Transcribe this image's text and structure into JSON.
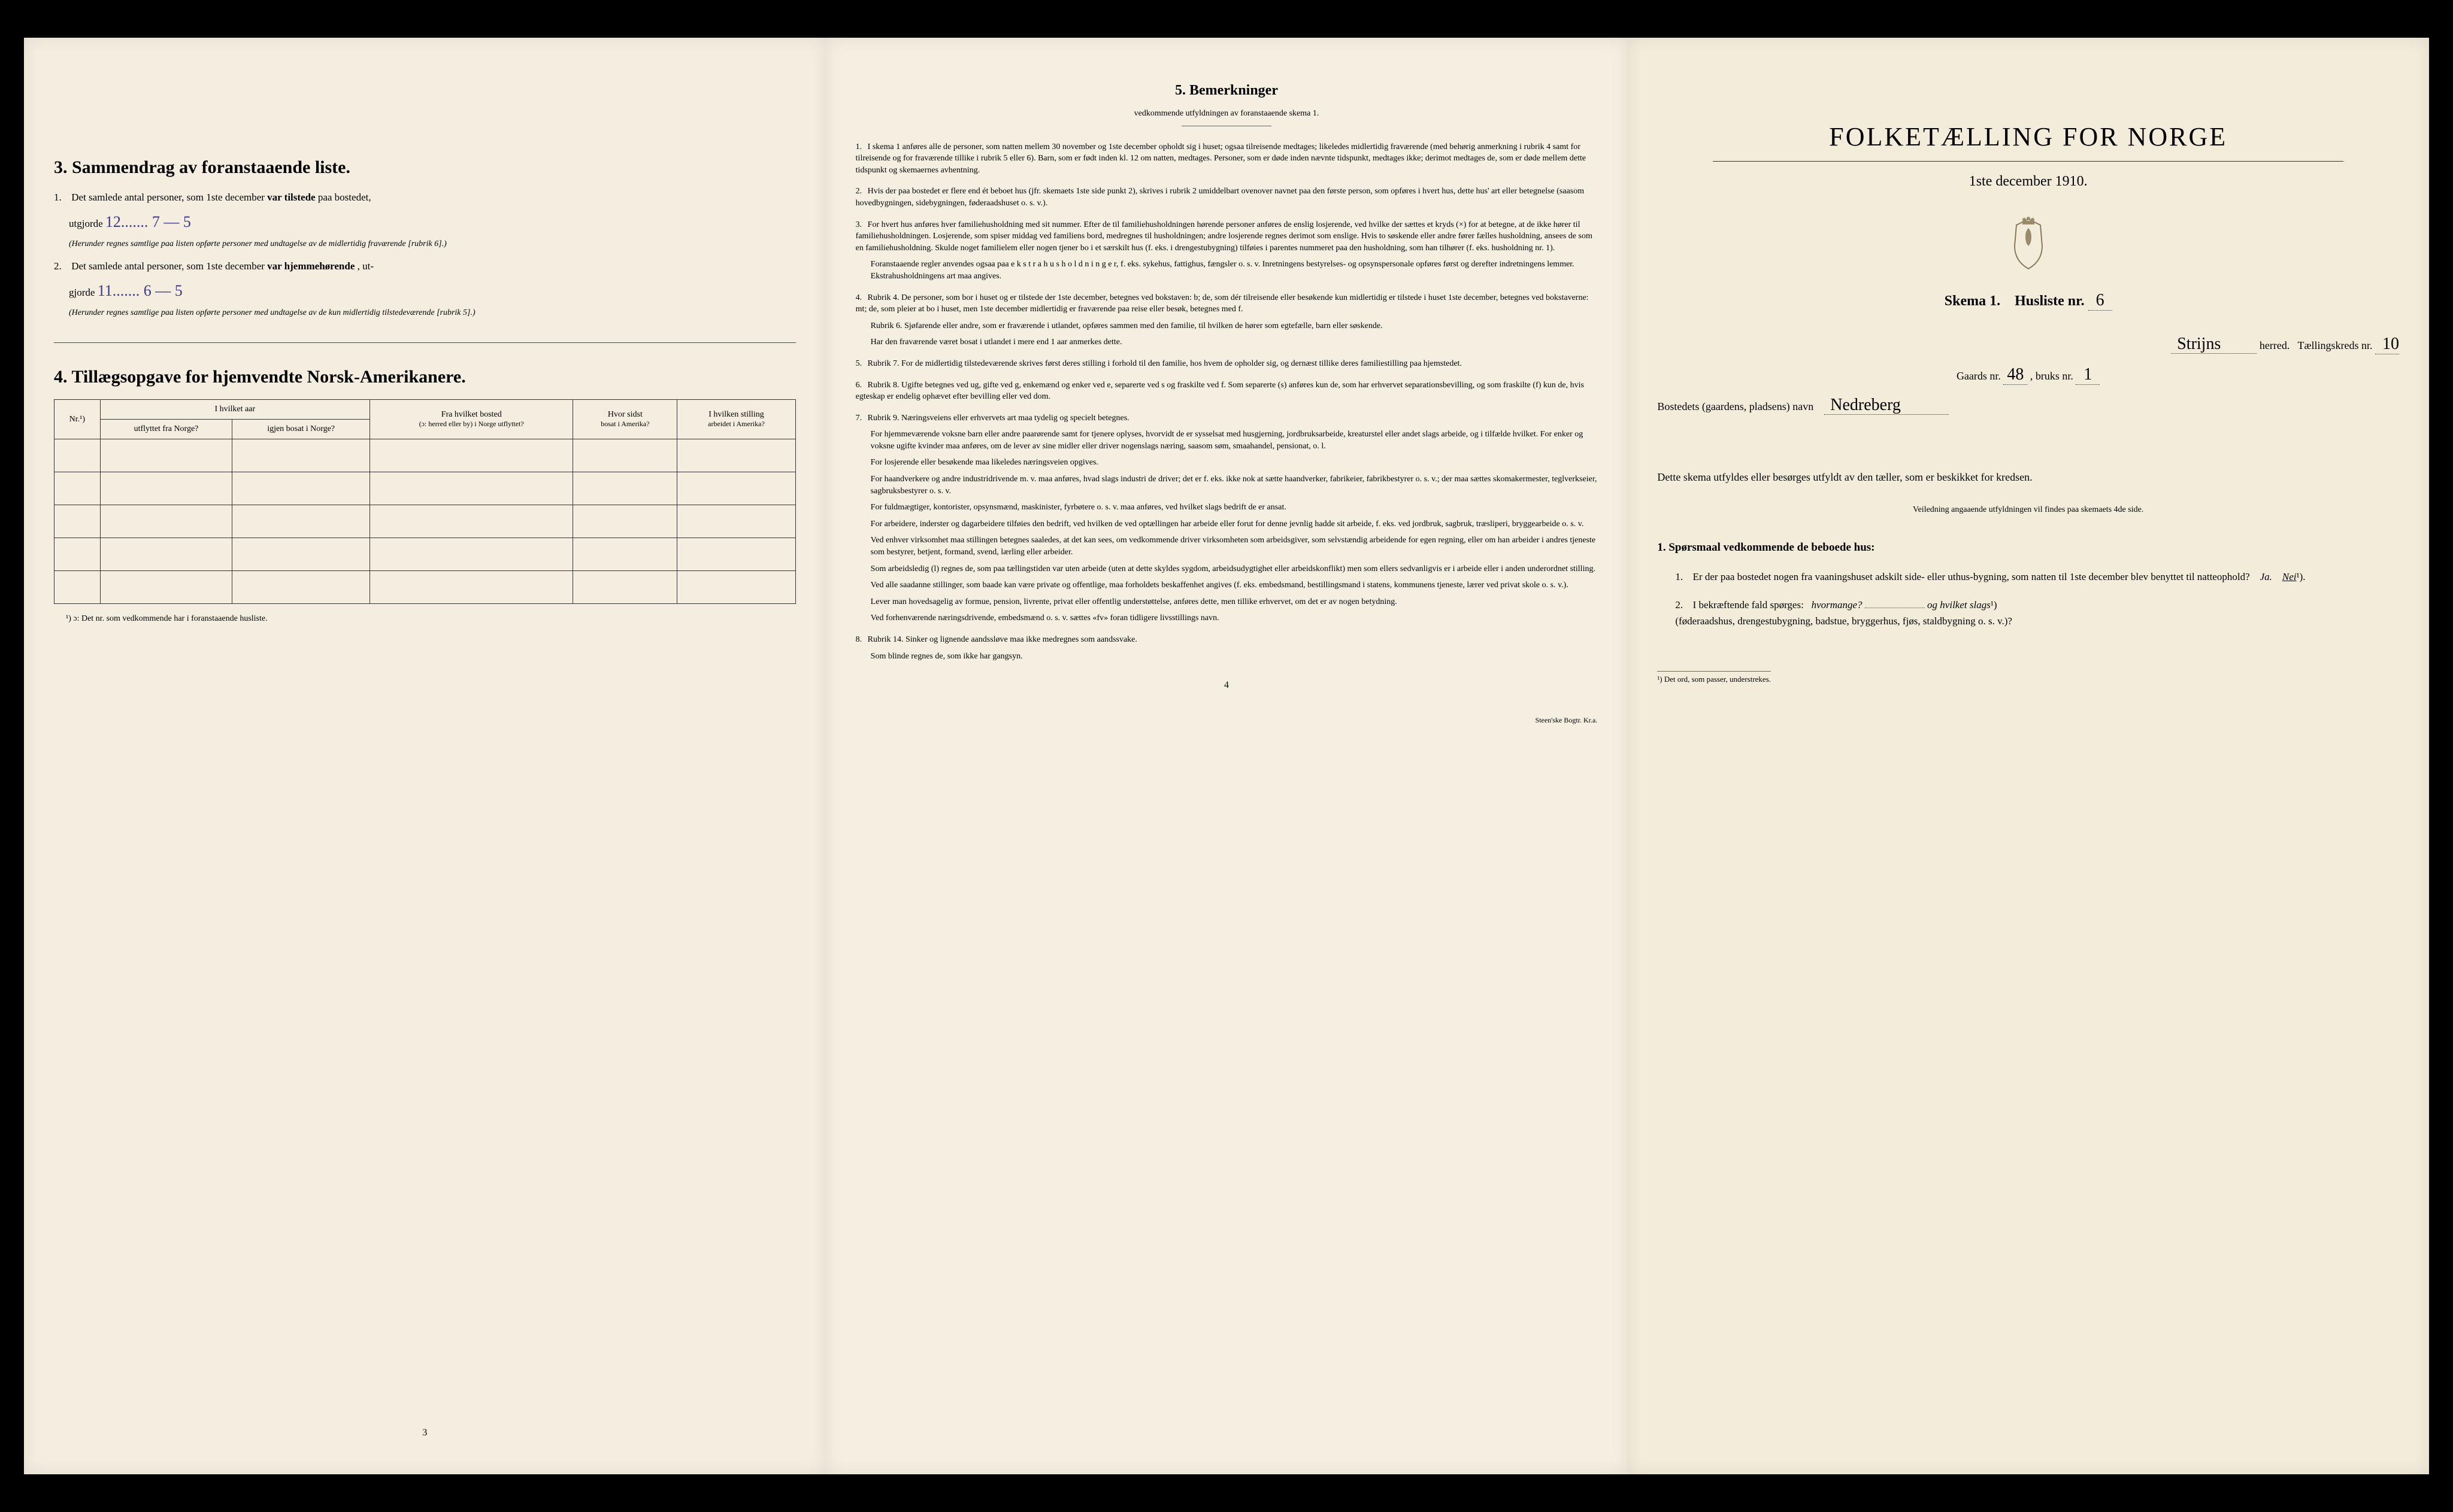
{
  "page1": {
    "section3_title": "3.   Sammendrag av foranstaaende liste.",
    "item1_prefix": "1.",
    "item1_text_a": "Det samlede antal personer, som 1ste december",
    "item1_bold": "var tilstede",
    "item1_text_b": "paa bostedet,",
    "item1_line2": "utgjorde",
    "item1_handwritten": "12.......   7 — 5",
    "item1_note": "(Herunder regnes samtlige paa listen opførte personer med undtagelse av de midlertidig fraværende [rubrik 6].)",
    "item2_prefix": "2.",
    "item2_text_a": "Det samlede antal personer, som 1ste december",
    "item2_bold": "var hjemmehørende",
    "item2_text_b": ", ut-",
    "item2_line2": "gjorde",
    "item2_handwritten": "11.......   6 — 5",
    "item2_note": "(Herunder regnes samtlige paa listen opførte personer med undtagelse av de kun midlertidig tilstedeværende [rubrik 5].)",
    "section4_title": "4.   Tillægsopgave for hjemvendte Norsk-Amerikanere.",
    "table": {
      "col1_header": "Nr.¹)",
      "col2_header_a": "I hvilket aar",
      "col2_header_b": "utflyttet fra Norge?",
      "col3_header_a": "igjen bosat i Norge?",
      "col4_header_a": "Fra hvilket bosted",
      "col4_header_b": "(ɔ: herred eller by) i Norge utflyttet?",
      "col5_header_a": "Hvor sidst",
      "col5_header_b": "bosat i Amerika?",
      "col6_header_a": "I hvilken stilling",
      "col6_header_b": "arbeidet i Amerika?"
    },
    "table_footnote": "¹) ɔ: Det nr. som vedkommende har i foranstaaende husliste.",
    "page_number": "3"
  },
  "page2": {
    "section5_title": "5.   Bemerkninger",
    "section5_subtitle": "vedkommende utfyldningen av foranstaaende skema 1.",
    "items": [
      {
        "num": "1.",
        "text": "I skema 1 anføres alle de personer, som natten mellem 30 november og 1ste december opholdt sig i huset; ogsaa tilreisende medtages; likeledes midlertidig fraværende (med behørig anmerkning i rubrik 4 samt for tilreisende og for fraværende tillike i rubrik 5 eller 6). Barn, som er født inden kl. 12 om natten, medtages. Personer, som er døde inden nævnte tidspunkt, medtages ikke; derimot medtages de, som er døde mellem dette tidspunkt og skemaernes avhentning."
      },
      {
        "num": "2.",
        "text": "Hvis der paa bostedet er flere end ét beboet hus (jfr. skemaets 1ste side punkt 2), skrives i rubrik 2 umiddelbart ovenover navnet paa den første person, som opføres i hvert hus, dette hus' art eller betegnelse (saasom hovedbygningen, sidebygningen, føderaadshuset o. s. v.)."
      },
      {
        "num": "3.",
        "text": "For hvert hus anføres hver familiehusholdning med sit nummer. Efter de til familiehusholdningen hørende personer anføres de enslig losjerende, ved hvilke der sættes et kryds (×) for at betegne, at de ikke hører til familiehusholdningen. Losjerende, som spiser middag ved familiens bord, medregnes til husholdningen; andre losjerende regnes derimot som enslige. Hvis to søskende eller andre fører fælles husholdning, ansees de som en familiehusholdning. Skulde noget familielem eller nogen tjener bo i et særskilt hus (f. eks. i drengestubygning) tilføies i parentes nummeret paa den husholdning, som han tilhører (f. eks. husholdning nr. 1).",
        "extra": "Foranstaaende regler anvendes ogsaa paa e k s t r a h u s h o l d n i n g e r, f. eks. sykehus, fattighus, fængsler o. s. v. Inretningens bestyrelses- og opsynspersonale opføres først og derefter indretningens lemmer. Ekstrahusholdningens art maa angives."
      },
      {
        "num": "4.",
        "text": "Rubrik 4. De personer, som bor i huset og er tilstede der 1ste december, betegnes ved bokstaven: b; de, som dér tilreisende eller besøkende kun midlertidig er tilstede i huset 1ste december, betegnes ved bokstaverne: mt; de, som pleier at bo i huset, men 1ste december midlertidig er fraværende paa reise eller besøk, betegnes med f.",
        "extra": "Rubrik 6. Sjøfarende eller andre, som er fraværende i utlandet, opføres sammen med den familie, til hvilken de hører som egtefælle, barn eller søskende.",
        "extra2": "Har den fraværende været bosat i utlandet i mere end 1 aar anmerkes dette."
      },
      {
        "num": "5.",
        "text": "Rubrik 7. For de midlertidig tilstedeværende skrives først deres stilling i forhold til den familie, hos hvem de opholder sig, og dernæst tillike deres familiestilling paa hjemstedet."
      },
      {
        "num": "6.",
        "text": "Rubrik 8. Ugifte betegnes ved ug, gifte ved g, enkemænd og enker ved e, separerte ved s og fraskilte ved f. Som separerte (s) anføres kun de, som har erhvervet separationsbevilling, og som fraskilte (f) kun de, hvis egteskap er endelig ophævet efter bevilling eller ved dom."
      },
      {
        "num": "7.",
        "text": "Rubrik 9. Næringsveiens eller erhvervets art maa tydelig og specielt betegnes.",
        "extra": "For hjemmeværende voksne barn eller andre paarørende samt for tjenere oplyses, hvorvidt de er sysselsat med husgjerning, jordbruksarbeide, kreaturstel eller andet slags arbeide, og i tilfælde hvilket. For enker og voksne ugifte kvinder maa anføres, om de lever av sine midler eller driver nogenslags næring, saasom søm, smaahandel, pensionat, o. l.",
        "extra2": "For losjerende eller besøkende maa likeledes næringsveien opgives.",
        "extra3": "For haandverkere og andre industridrivende m. v. maa anføres, hvad slags industri de driver; det er f. eks. ikke nok at sætte haandverker, fabrikeier, fabrikbestyrer o. s. v.; der maa sættes skomakermester, teglverkseier, sagbruksbestyrer o. s. v.",
        "extra4": "For fuldmægtiger, kontorister, opsynsmænd, maskinister, fyrbøtere o. s. v. maa anføres, ved hvilket slags bedrift de er ansat.",
        "extra5": "For arbeidere, inderster og dagarbeidere tilføies den bedrift, ved hvilken de ved optællingen har arbeide eller forut for denne jevnlig hadde sit arbeide, f. eks. ved jordbruk, sagbruk, træsliperi, bryggearbeide o. s. v.",
        "extra6": "Ved enhver virksomhet maa stillingen betegnes saaledes, at det kan sees, om vedkommende driver virksomheten som arbeidsgiver, som selvstændig arbeidende for egen regning, eller om han arbeider i andres tjeneste som bestyrer, betjent, formand, svend, lærling eller arbeider.",
        "extra7": "Som arbeidsledig (l) regnes de, som paa tællingstiden var uten arbeide (uten at dette skyldes sygdom, arbeidsudygtighet eller arbeidskonflikt) men som ellers sedvanligvis er i arbeide eller i anden underordnet stilling.",
        "extra8": "Ved alle saadanne stillinger, som baade kan være private og offentlige, maa forholdets beskaffenhet angives (f. eks. embedsmand, bestillingsmand i statens, kommunens tjeneste, lærer ved privat skole o. s. v.).",
        "extra9": "Lever man hovedsagelig av formue, pension, livrente, privat eller offentlig understøttelse, anføres dette, men tillike erhvervet, om det er av nogen betydning.",
        "extra10": "Ved forhenværende næringsdrivende, embedsmænd o. s. v. sættes «fv» foran tidligere livsstillings navn."
      },
      {
        "num": "8.",
        "text": "Rubrik 14. Sinker og lignende aandssløve maa ikke medregnes som aandssvake.",
        "extra": "Som blinde regnes de, som ikke har gangsyn."
      }
    ],
    "page_number": "4",
    "printer": "Steen'ske Bogtr. Kr.a."
  },
  "page3": {
    "title": "FOLKETÆLLING FOR NORGE",
    "subtitle": "1ste december 1910.",
    "skema_label": "Skema 1.",
    "husliste_label": "Husliste nr.",
    "husliste_value": "6",
    "herred_value": "Strijns",
    "herred_label": "herred.",
    "kreds_label": "Tællingskreds nr.",
    "kreds_value": "10",
    "gaards_label": "Gaards nr.",
    "gaards_value": "48",
    "bruks_label": ", bruks nr.",
    "bruks_value": "1",
    "bosted_label": "Bostedets (gaardens, pladsens) navn",
    "bosted_value": "Nedreberg",
    "instruction": "Dette skema utfyldes eller besørges utfyldt av den tæller, som er beskikket for kredsen.",
    "instruction_sub": "Veiledning angaaende utfyldningen vil findes paa skemaets 4de side.",
    "section1_title": "1. Spørsmaal vedkommende de beboede hus:",
    "q1_num": "1.",
    "q1_text": "Er der paa bostedet nogen fra vaaningshuset adskilt side- eller uthus-bygning, som natten til 1ste december blev benyttet til natteophold?",
    "q1_ja": "Ja.",
    "q1_nei": "Nei",
    "q1_sup": "¹).",
    "q2_num": "2.",
    "q2_text_a": "I bekræftende fald spørges:",
    "q2_ital1": "hvormange?",
    "q2_text_b": "og",
    "q2_ital2": "hvilket slags",
    "q2_sup": "¹)",
    "q2_text_c": "(føderaadshus, drengestubygning, badstue, bryggerhus, fjøs, staldbygning o. s. v.)?",
    "footnote": "¹) Det ord, som passer, understrekes."
  }
}
